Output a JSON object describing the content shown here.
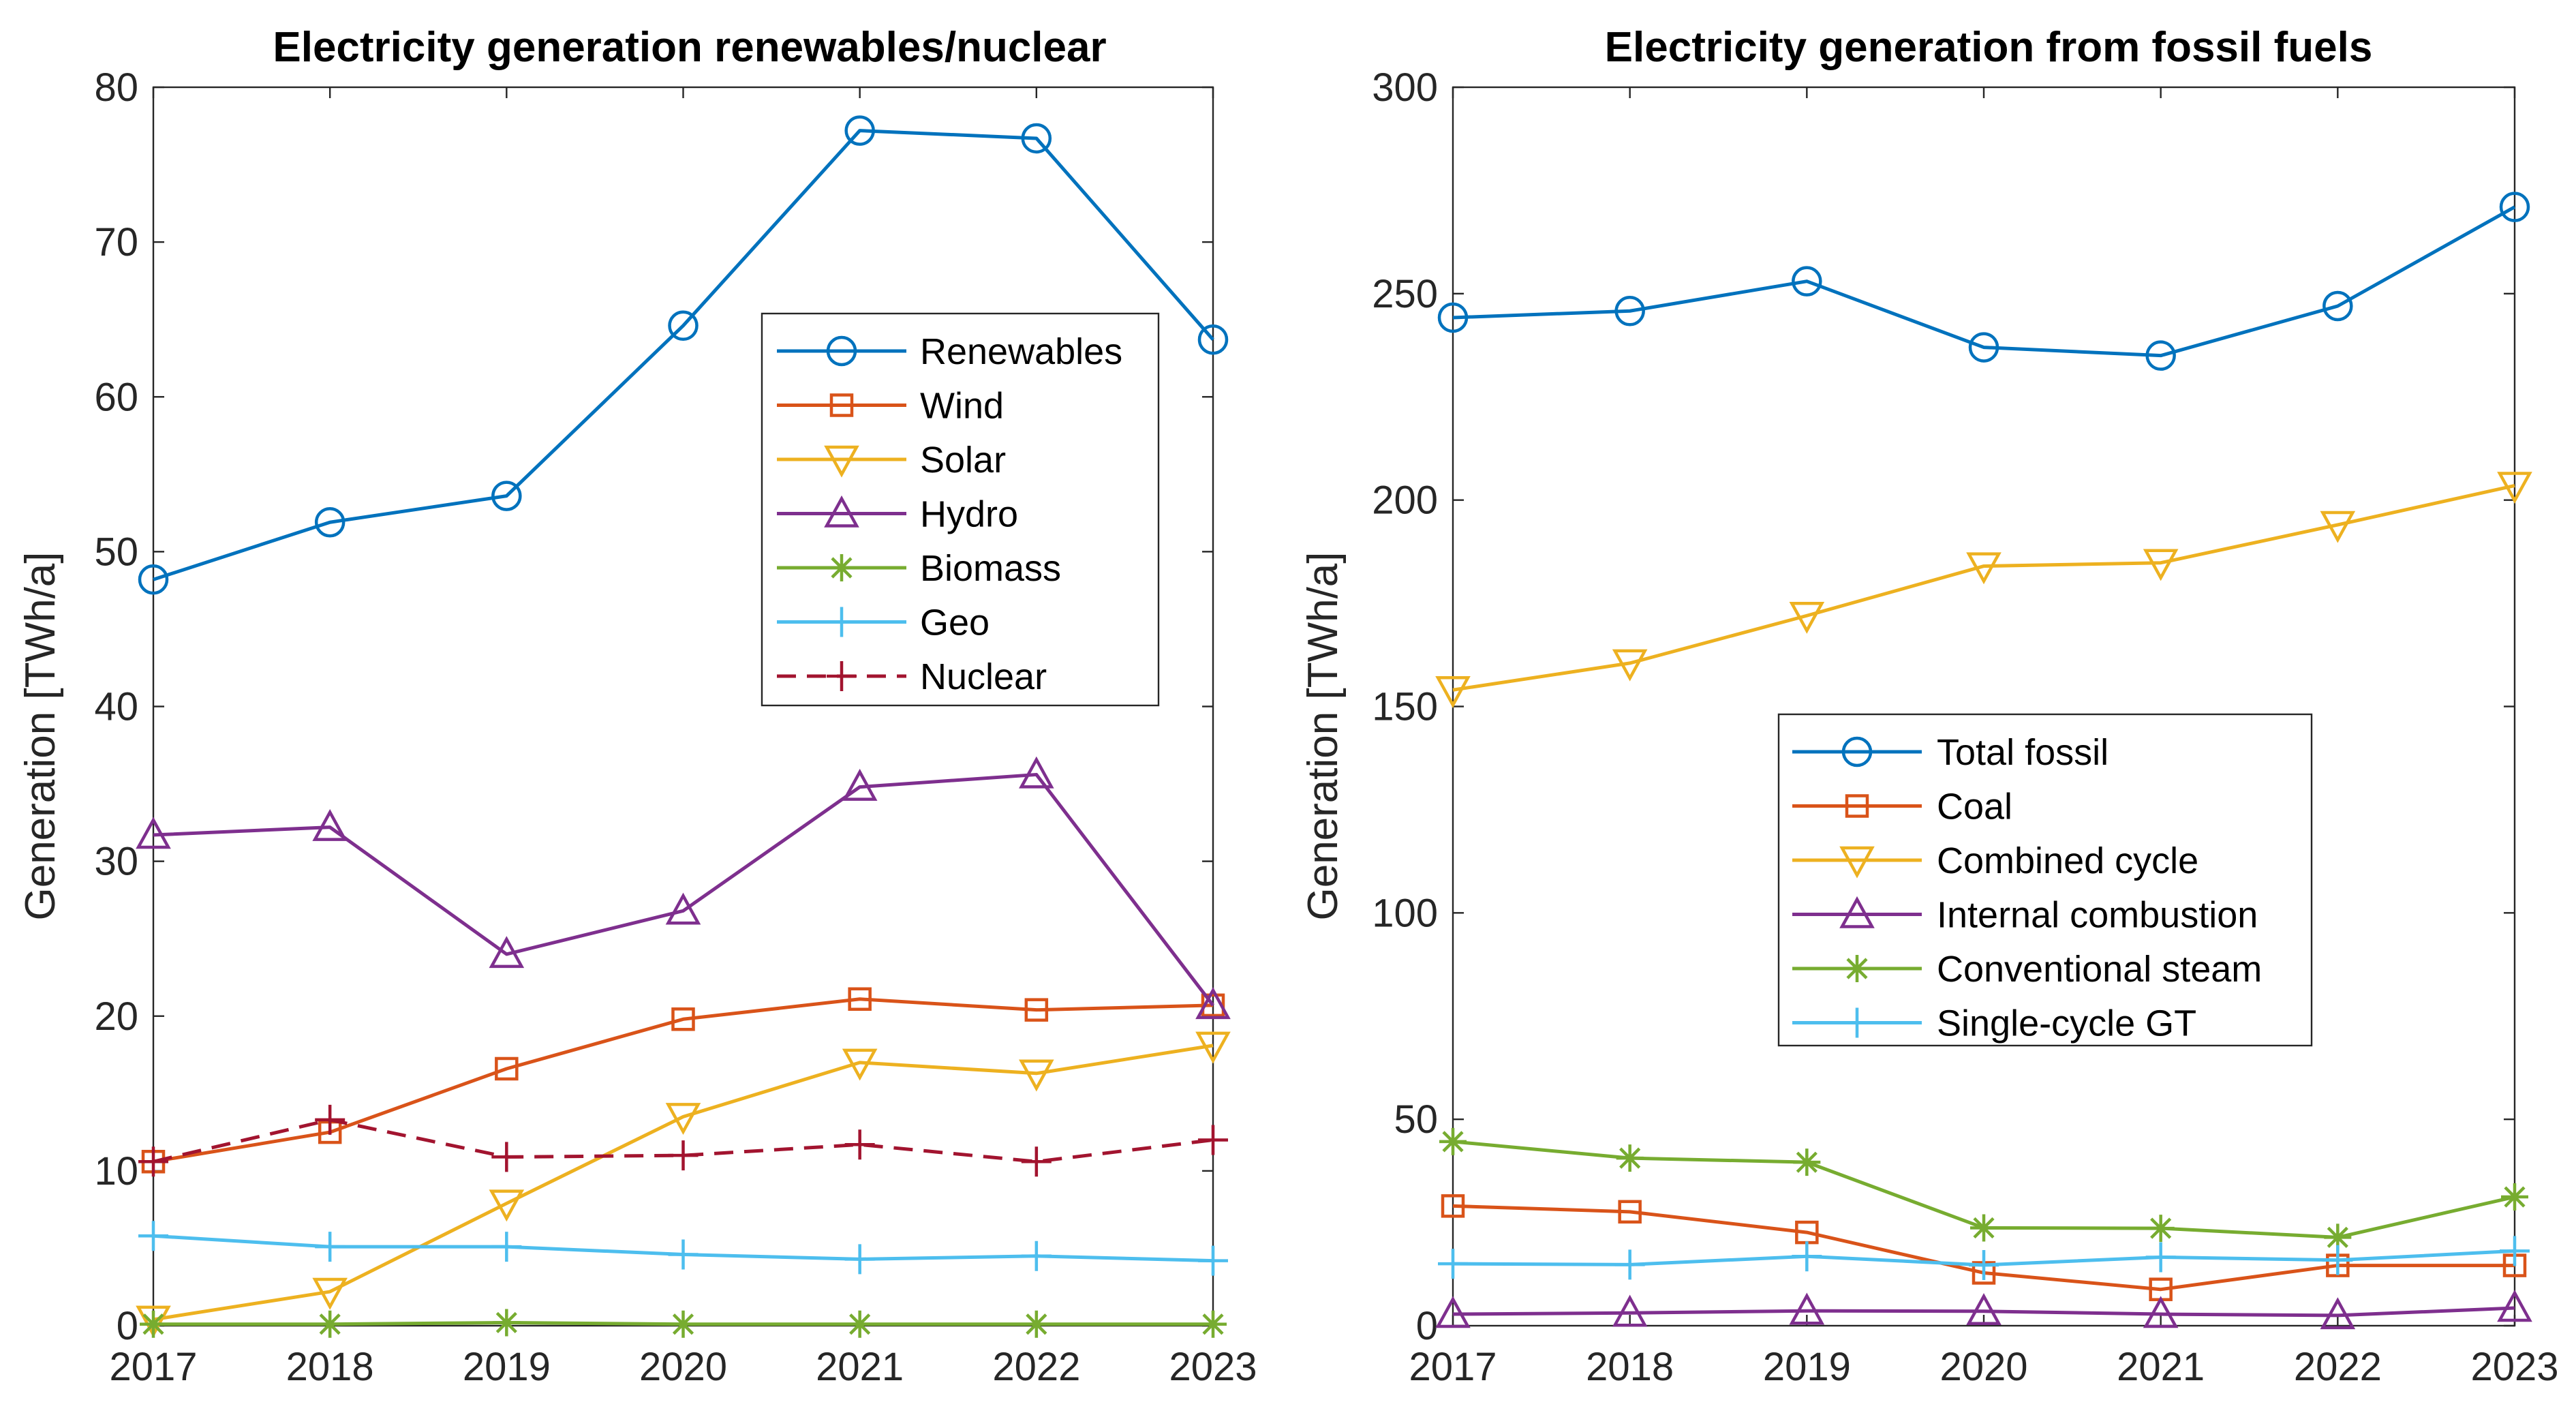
{
  "chart_data": [
    {
      "type": "line",
      "title": "Electricity generation renewables/nuclear",
      "xlabel": "",
      "ylabel": "Generation [TWh/a]",
      "x": [
        2017,
        2018,
        2019,
        2020,
        2021,
        2022,
        2023
      ],
      "xlim": [
        2017,
        2023
      ],
      "ylim": [
        0,
        80
      ],
      "yticks": [
        0,
        10,
        20,
        30,
        40,
        50,
        60,
        70,
        80
      ],
      "grid": false,
      "legend_position": "upper-right",
      "series": [
        {
          "name": "Renewables",
          "color": "#0072BD",
          "marker": "circle",
          "dash": "solid",
          "values": [
            48.2,
            51.9,
            53.6,
            64.6,
            77.2,
            76.7,
            63.7
          ]
        },
        {
          "name": "Wind",
          "color": "#D95319",
          "marker": "square",
          "dash": "solid",
          "values": [
            10.6,
            12.5,
            16.6,
            19.8,
            21.1,
            20.4,
            20.7
          ]
        },
        {
          "name": "Solar",
          "color": "#EDB120",
          "marker": "triangle-down",
          "dash": "solid",
          "values": [
            0.4,
            2.2,
            7.9,
            13.5,
            17.0,
            16.3,
            18.1
          ]
        },
        {
          "name": "Hydro",
          "color": "#7E2F8E",
          "marker": "triangle-up",
          "dash": "solid",
          "values": [
            31.7,
            32.2,
            24.0,
            26.8,
            34.8,
            35.6,
            20.7
          ]
        },
        {
          "name": "Biomass",
          "color": "#77AC30",
          "marker": "asterisk",
          "dash": "solid",
          "values": [
            0.1,
            0.1,
            0.2,
            0.1,
            0.1,
            0.1,
            0.1
          ]
        },
        {
          "name": "Geo",
          "color": "#4DBEEE",
          "marker": "plus",
          "dash": "solid",
          "values": [
            5.8,
            5.1,
            5.1,
            4.6,
            4.3,
            4.5,
            4.2
          ]
        },
        {
          "name": "Nuclear",
          "color": "#A2142F",
          "marker": "plus",
          "dash": "dashed",
          "values": [
            10.6,
            13.3,
            10.9,
            11.0,
            11.7,
            10.6,
            12.0
          ]
        }
      ]
    },
    {
      "type": "line",
      "title": "Electricity generation from fossil fuels",
      "xlabel": "",
      "ylabel": "Generation [TWh/a]",
      "x": [
        2017,
        2018,
        2019,
        2020,
        2021,
        2022,
        2023
      ],
      "xlim": [
        2017,
        2023
      ],
      "ylim": [
        0,
        300
      ],
      "yticks": [
        0,
        50,
        100,
        150,
        200,
        250,
        300
      ],
      "grid": false,
      "legend_position": "center",
      "series": [
        {
          "name": "Total fossil",
          "color": "#0072BD",
          "marker": "circle",
          "dash": "solid",
          "values": [
            244.2,
            245.8,
            253.0,
            237.0,
            235.0,
            247.0,
            271.0
          ]
        },
        {
          "name": "Coal",
          "color": "#D95319",
          "marker": "square",
          "dash": "solid",
          "values": [
            29.0,
            27.6,
            22.6,
            12.8,
            8.8,
            14.6,
            14.6
          ]
        },
        {
          "name": "Combined cycle",
          "color": "#EDB120",
          "marker": "triangle-down",
          "dash": "solid",
          "values": [
            154.0,
            160.5,
            172.0,
            184.0,
            184.8,
            194.0,
            203.5
          ]
        },
        {
          "name": "Internal combustion",
          "color": "#7E2F8E",
          "marker": "triangle-up",
          "dash": "solid",
          "values": [
            2.8,
            3.1,
            3.6,
            3.5,
            2.8,
            2.5,
            4.3
          ]
        },
        {
          "name": "Conventional steam",
          "color": "#77AC30",
          "marker": "asterisk",
          "dash": "solid",
          "values": [
            44.6,
            40.6,
            39.6,
            23.7,
            23.6,
            21.4,
            31.2
          ]
        },
        {
          "name": "Single-cycle GT",
          "color": "#4DBEEE",
          "marker": "plus",
          "dash": "solid",
          "values": [
            15.0,
            14.8,
            16.8,
            14.7,
            16.6,
            15.9,
            18.1
          ]
        }
      ]
    }
  ]
}
